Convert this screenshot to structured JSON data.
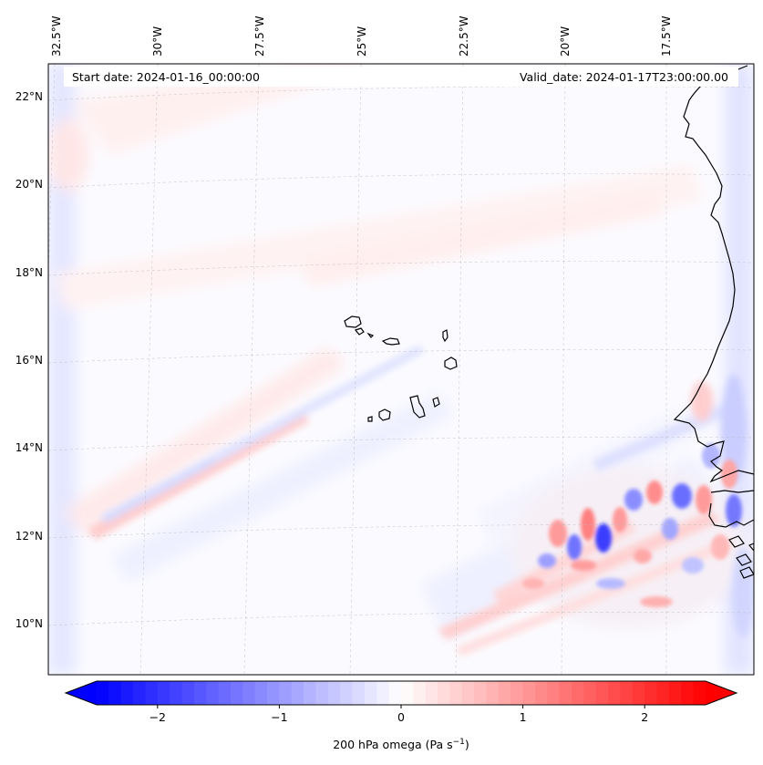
{
  "header": {
    "start_date": "Start date: 2024-01-16_00:00:00",
    "valid_date": "Valid_date: 2024-01-17T23:00:00.00"
  },
  "axes": {
    "lon_labels": [
      "32.5°W",
      "30°W",
      "27.5°W",
      "25°W",
      "22.5°W",
      "20°W",
      "17.5°W"
    ],
    "lat_labels": [
      "22°N",
      "20°N",
      "18°N",
      "16°N",
      "14°N",
      "12°N",
      "10°N"
    ]
  },
  "colorbar": {
    "ticks": [
      "−2",
      "−1",
      "0",
      "1",
      "2"
    ],
    "label_main": "200 hPa omega (Pa s",
    "label_sup": "−1",
    "label_end": ")",
    "min": -2.5,
    "max": 2.5,
    "colormap": "bwr",
    "extend": "both"
  },
  "colors": {
    "negative": "#0000ff",
    "zero": "#ffffff",
    "positive": "#ff0000",
    "coastline": "#000000"
  },
  "map": {
    "field": "200 hPa omega",
    "projection": "lambert conformal",
    "region": "Cape Verde and West African coast"
  }
}
